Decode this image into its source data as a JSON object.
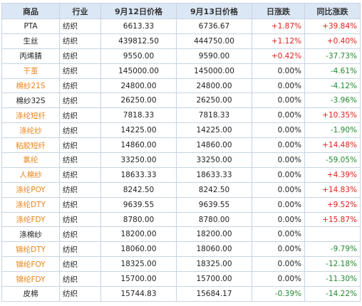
{
  "headers": {
    "name": "商品",
    "industry": "行业",
    "price_sep12": "9月12日价格",
    "price_sep13": "9月13日价格",
    "daily_change": "日涨跌",
    "yoy_change": "同比涨跌"
  },
  "colors": {
    "header_bg": "#dbe7f5",
    "grid": "#c7d3e3",
    "name_orange": "#e8831a",
    "rise_red": "#e0201b",
    "fall_green": "#1f8a2e"
  },
  "rows": [
    {
      "name": "PTA",
      "name_color": "black",
      "industry": "纺织",
      "p1": "6613.33",
      "p2": "6736.67",
      "chg": "+1.87%",
      "chg_color": "red",
      "yoy": "+39.84%",
      "yoy_color": "red"
    },
    {
      "name": "生丝",
      "name_color": "black",
      "industry": "纺织",
      "p1": "439812.50",
      "p2": "444750.00",
      "chg": "+1.12%",
      "chg_color": "red",
      "yoy": "+0.40%",
      "yoy_color": "red"
    },
    {
      "name": "丙烯腈",
      "name_color": "black",
      "industry": "纺织",
      "p1": "9550.00",
      "p2": "9590.00",
      "chg": "+0.42%",
      "chg_color": "red",
      "yoy": "-37.73%",
      "yoy_color": "green"
    },
    {
      "name": "干茧",
      "name_color": "orange",
      "industry": "纺织",
      "p1": "145000.00",
      "p2": "145000.00",
      "chg": "0.00%",
      "chg_color": "black",
      "yoy": "-4.61%",
      "yoy_color": "green"
    },
    {
      "name": "棉纱21S",
      "name_color": "orange",
      "industry": "纺织",
      "p1": "24800.00",
      "p2": "24800.00",
      "chg": "0.00%",
      "chg_color": "black",
      "yoy": "-4.12%",
      "yoy_color": "green"
    },
    {
      "name": "棉纱32S",
      "name_color": "black",
      "industry": "纺织",
      "p1": "26250.00",
      "p2": "26250.00",
      "chg": "0.00%",
      "chg_color": "black",
      "yoy": "-3.96%",
      "yoy_color": "green"
    },
    {
      "name": "涤纶短纤",
      "name_color": "orange",
      "industry": "纺织",
      "p1": "7818.33",
      "p2": "7818.33",
      "chg": "0.00%",
      "chg_color": "black",
      "yoy": "+10.35%",
      "yoy_color": "red"
    },
    {
      "name": "涤纶纱",
      "name_color": "orange",
      "industry": "纺织",
      "p1": "14225.00",
      "p2": "14225.00",
      "chg": "0.00%",
      "chg_color": "black",
      "yoy": "-1.90%",
      "yoy_color": "green"
    },
    {
      "name": "粘胶短纤",
      "name_color": "orange",
      "industry": "纺织",
      "p1": "14860.00",
      "p2": "14860.00",
      "chg": "0.00%",
      "chg_color": "black",
      "yoy": "+14.48%",
      "yoy_color": "red"
    },
    {
      "name": "氯纶",
      "name_color": "orange",
      "industry": "纺织",
      "p1": "33250.00",
      "p2": "33250.00",
      "chg": "0.00%",
      "chg_color": "black",
      "yoy": "-59.05%",
      "yoy_color": "green"
    },
    {
      "name": "人棉纱",
      "name_color": "orange",
      "industry": "纺织",
      "p1": "18633.33",
      "p2": "18633.33",
      "chg": "0.00%",
      "chg_color": "black",
      "yoy": "+4.39%",
      "yoy_color": "red"
    },
    {
      "name": "涤纶POY",
      "name_color": "orange",
      "industry": "纺织",
      "p1": "8242.50",
      "p2": "8242.50",
      "chg": "0.00%",
      "chg_color": "black",
      "yoy": "+14.83%",
      "yoy_color": "red"
    },
    {
      "name": "涤纶DTY",
      "name_color": "orange",
      "industry": "纺织",
      "p1": "9639.55",
      "p2": "9639.55",
      "chg": "0.00%",
      "chg_color": "black",
      "yoy": "+9.52%",
      "yoy_color": "red"
    },
    {
      "name": "涤纶FDY",
      "name_color": "orange",
      "industry": "纺织",
      "p1": "8780.00",
      "p2": "8780.00",
      "chg": "0.00%",
      "chg_color": "black",
      "yoy": "+15.87%",
      "yoy_color": "red"
    },
    {
      "name": "涤棉纱",
      "name_color": "black",
      "industry": "纺织",
      "p1": "18200.00",
      "p2": "18200.00",
      "chg": "0.00%",
      "chg_color": "black",
      "yoy": "",
      "yoy_color": "black"
    },
    {
      "name": "锦纶DTY",
      "name_color": "orange",
      "industry": "纺织",
      "p1": "18060.00",
      "p2": "18060.00",
      "chg": "0.00%",
      "chg_color": "black",
      "yoy": "-9.79%",
      "yoy_color": "green"
    },
    {
      "name": "锦纶FOY",
      "name_color": "orange",
      "industry": "纺织",
      "p1": "18325.00",
      "p2": "18325.00",
      "chg": "0.00%",
      "chg_color": "black",
      "yoy": "-12.18%",
      "yoy_color": "green"
    },
    {
      "name": "锦纶FDY",
      "name_color": "orange",
      "industry": "纺织",
      "p1": "15700.00",
      "p2": "15700.00",
      "chg": "0.00%",
      "chg_color": "black",
      "yoy": "-11.30%",
      "yoy_color": "green"
    },
    {
      "name": "皮棉",
      "name_color": "black",
      "industry": "纺织",
      "p1": "15744.83",
      "p2": "15684.17",
      "chg": "-0.39%",
      "chg_color": "green",
      "yoy": "-14.22%",
      "yoy_color": "green"
    }
  ]
}
